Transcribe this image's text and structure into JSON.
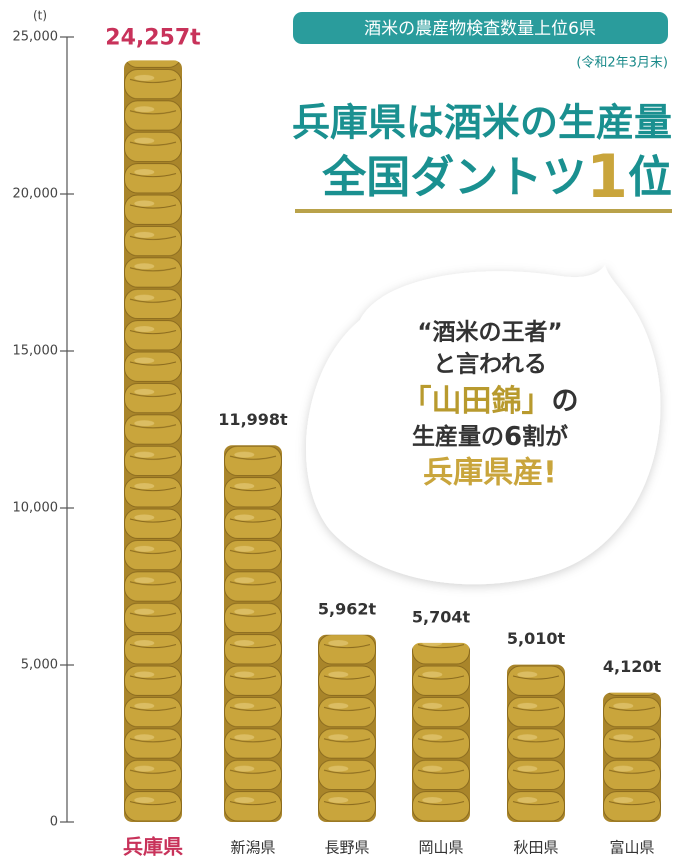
{
  "chart_data": {
    "type": "bar",
    "title": "酒米の農産物検査数量上位6県",
    "subtitle": "(令和2年3月末)",
    "headline": [
      "兵庫県は酒米の生産量",
      "全国ダントツ",
      "1",
      "位"
    ],
    "callout": [
      "“酒米の王者”",
      "と言われる",
      "「山田錦」",
      "の",
      "生産量の",
      "6",
      "割が",
      "兵庫県産!"
    ],
    "y_label": "(t)",
    "categories": [
      "兵庫県",
      "新潟県",
      "長野県",
      "岡山県",
      "秋田県",
      "富山県"
    ],
    "values": [
      24257,
      11998,
      5962,
      5704,
      5010,
      4120
    ],
    "value_labels": [
      "24,257t",
      "11,998t",
      "5,962t",
      "5,704t",
      "5,010t",
      "4,120t"
    ],
    "label_colors": [
      "#c8325a",
      "#333333",
      "#333333",
      "#333333",
      "#333333",
      "#333333"
    ],
    "color": "#c9a53c",
    "ylim": [
      0,
      25000
    ],
    "yticks": [
      0,
      {
        "value": 5000,
        "label": "5,000"
      },
      {
        "value": 10000,
        "label": "10,000"
      },
      {
        "value": 15000,
        "label": "15,000"
      },
      {
        "value": 20000,
        "label": "20,000"
      },
      {
        "value": 25000,
        "label": "25,000"
      }
    ],
    "grid": false
  }
}
